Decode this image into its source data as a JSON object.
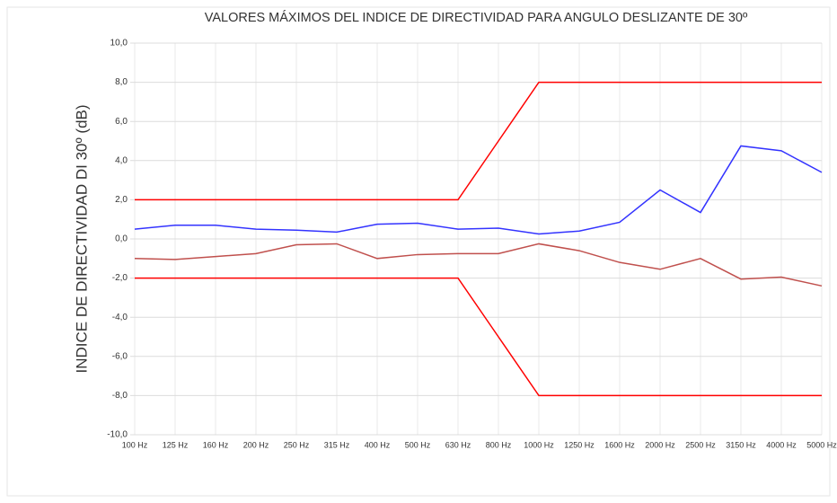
{
  "chart_data": {
    "type": "line",
    "title": "VALORES MÁXIMOS DEL INDICE DE DIRECTIVIDAD PARA ANGULO DESLIZANTE DE 30º",
    "y_label": "INDICE DE DIRECTIVIDAD DI 30º (dB)",
    "categories": [
      "100 Hz",
      "125 Hz",
      "160 Hz",
      "200 Hz",
      "250 Hz",
      "315 Hz",
      "400 Hz",
      "500 Hz",
      "630 Hz",
      "800 Hz",
      "1000 Hz",
      "1250 Hz",
      "1600 Hz",
      "2000 Hz",
      "2500 Hz",
      "3150 Hz",
      "4000 Hz",
      "5000 Hz"
    ],
    "series": [
      {
        "color": "#ff0000",
        "values": [
          2,
          2,
          2,
          2,
          2,
          2,
          2,
          2,
          2,
          5,
          8,
          8,
          8,
          8,
          8,
          8,
          8,
          8
        ]
      },
      {
        "color": "#3333ff",
        "values": [
          0.5,
          0.7,
          0.7,
          0.5,
          0.45,
          0.35,
          0.75,
          0.8,
          0.5,
          0.55,
          0.25,
          0.4,
          0.85,
          2.5,
          1.35,
          4.75,
          4.5,
          3.4
        ]
      },
      {
        "color": "#c0504d",
        "values": [
          -1.0,
          -1.05,
          -0.9,
          -0.75,
          -0.3,
          -0.25,
          -1.0,
          -0.8,
          -0.75,
          -0.75,
          -0.25,
          -0.6,
          -1.2,
          -1.55,
          -1.0,
          -2.05,
          -1.95,
          -2.4
        ]
      },
      {
        "color": "#ff0000",
        "values": [
          -2,
          -2,
          -2,
          -2,
          -2,
          -2,
          -2,
          -2,
          -2,
          -5,
          -8,
          -8,
          -8,
          -8,
          -8,
          -8,
          -8,
          -8
        ]
      }
    ],
    "ylim": [
      -10,
      10
    ],
    "yticks": [
      {
        "value": -10,
        "label": "-10,0"
      },
      {
        "value": -8,
        "label": "-8,0"
      },
      {
        "value": -6,
        "label": "-6,0"
      },
      {
        "value": -4,
        "label": "-4,0"
      },
      {
        "value": -2,
        "label": "-2,0"
      },
      {
        "value": 0,
        "label": "0,0"
      },
      {
        "value": 2,
        "label": "2,0"
      },
      {
        "value": 4,
        "label": "4,0"
      },
      {
        "value": 6,
        "label": "6,0"
      },
      {
        "value": 8,
        "label": "8,0"
      },
      {
        "value": 10,
        "label": "10,0"
      }
    ],
    "grid": true
  }
}
